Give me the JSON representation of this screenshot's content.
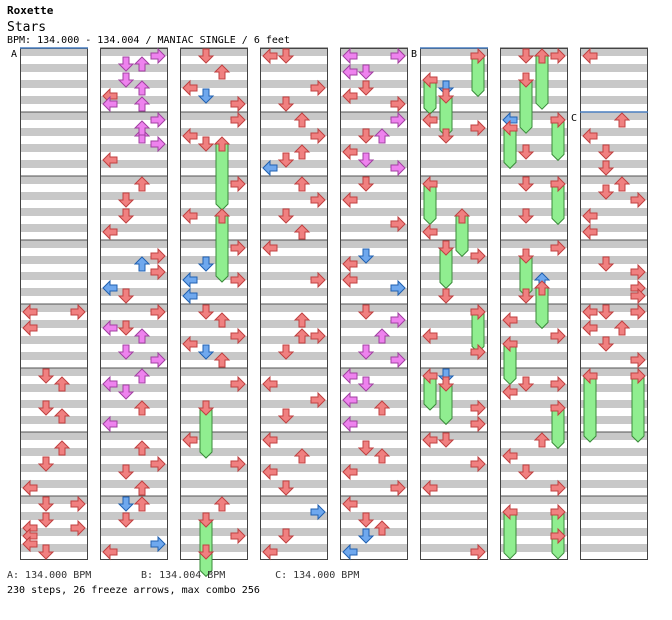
{
  "song": {
    "artist": "Roxette",
    "title": "Stars",
    "bpm_line": "BPM: 134.000 - 134.004 / MANIAC SINGLE / 6 feet"
  },
  "legend": [
    {
      "key": "A",
      "text": "A: 134.000 BPM"
    },
    {
      "key": "B",
      "text": "B: 134.004 BPM"
    },
    {
      "key": "C",
      "text": "C: 134.000 BPM"
    }
  ],
  "summary": "230 steps, 26 freeze arrows, max combo 256",
  "colors": {
    "quarter": "#f08080",
    "eighth": "#6fa8ee",
    "sixteenth": "#ee82ee",
    "freeze": "#90ee90",
    "stripe": "#c8c8c8",
    "bpm_marker": "#4a7fc0"
  },
  "chart": {
    "lanes": [
      "left",
      "down",
      "up",
      "right"
    ],
    "measures_per_column": 8,
    "columns": 8,
    "bpm_markers": [
      {
        "label": "A",
        "column": 0,
        "measure": 0
      },
      {
        "label": "B",
        "column": 5,
        "measure": 0
      },
      {
        "label": "C",
        "column": 7,
        "measure": 1
      }
    ],
    "measures": [
      [],
      [],
      [],
      [],
      [
        [
          0,
          0.125,
          "q"
        ],
        [
          3,
          0.125,
          "q"
        ],
        [
          0,
          0.375,
          "q"
        ]
      ],
      [
        [
          1,
          0.125,
          "q"
        ],
        [
          2,
          0.25,
          "q"
        ],
        [
          1,
          0.625,
          "q"
        ],
        [
          2,
          0.75,
          "q"
        ]
      ],
      [
        [
          2,
          0.25,
          "q"
        ],
        [
          1,
          0.5,
          "q"
        ],
        [
          0,
          0.875,
          "q"
        ]
      ],
      [
        [
          1,
          0.125,
          "q"
        ],
        [
          3,
          0.125,
          "q"
        ],
        [
          1,
          0.375,
          "q"
        ],
        [
          0,
          0.5,
          "q"
        ],
        [
          3,
          0.5,
          "q"
        ],
        [
          0,
          0.625,
          "q"
        ],
        [
          0,
          0.75,
          "q"
        ],
        [
          1,
          0.875,
          "q"
        ]
      ],
      [
        [
          2,
          0.25,
          "s"
        ],
        [
          3,
          0.125,
          "s"
        ],
        [
          1,
          0.25,
          "s"
        ],
        [
          1,
          0.5,
          "s"
        ],
        [
          2,
          0.625,
          "s"
        ],
        [
          0,
          0.75,
          "q"
        ],
        [
          0,
          0.875,
          "s"
        ],
        [
          2,
          0.875,
          "s"
        ]
      ],
      [
        [
          3,
          0.125,
          "s"
        ],
        [
          2,
          0.375,
          "s"
        ],
        [
          3,
          0.5,
          "s"
        ],
        [
          0,
          0.75,
          "q"
        ],
        [
          2,
          0.25,
          "s"
        ]
      ],
      [
        [
          2,
          0.125,
          "q"
        ],
        [
          1,
          0.375,
          "q"
        ],
        [
          1,
          0.625,
          "q"
        ],
        [
          0,
          0.875,
          "q"
        ]
      ],
      [
        [
          3,
          0.25,
          "q"
        ],
        [
          2,
          0.375,
          "e"
        ],
        [
          3,
          0.5,
          "q"
        ],
        [
          0,
          0.75,
          "e"
        ],
        [
          1,
          0.875,
          "q"
        ]
      ],
      [
        [
          3,
          0.125,
          "q"
        ],
        [
          0,
          0.375,
          "s"
        ],
        [
          1,
          0.375,
          "q"
        ],
        [
          2,
          0.5,
          "s"
        ],
        [
          1,
          0.75,
          "s"
        ],
        [
          3,
          0.875,
          "s"
        ]
      ],
      [
        [
          2,
          0.125,
          "s"
        ],
        [
          0,
          0.25,
          "s"
        ],
        [
          1,
          0.375,
          "s"
        ],
        [
          2,
          0.625,
          "q"
        ],
        [
          0,
          0.875,
          "s"
        ]
      ],
      [
        [
          2,
          0.25,
          "q"
        ],
        [
          3,
          0.5,
          "q"
        ],
        [
          1,
          0.625,
          "q"
        ],
        [
          2,
          0.875,
          "q"
        ]
      ],
      [
        [
          1,
          0.125,
          "e"
        ],
        [
          2,
          0.125,
          "q"
        ],
        [
          1,
          0.375,
          "q"
        ],
        [
          3,
          0.75,
          "e"
        ],
        [
          0,
          0.875,
          "q"
        ]
      ],
      [
        [
          1,
          0.125,
          "q"
        ],
        [
          2,
          0.375,
          "q"
        ],
        [
          0,
          0.625,
          "q"
        ],
        [
          1,
          0.75,
          "e"
        ],
        [
          3,
          0.875,
          "q"
        ]
      ],
      [
        [
          3,
          0.125,
          "q"
        ],
        [
          0,
          0.375,
          "q"
        ],
        [
          1,
          0.5,
          "q"
        ],
        [
          2,
          0.5,
          "f",
          1.0
        ]
      ],
      [
        [
          3,
          0.125,
          "q"
        ],
        [
          0,
          0.625,
          "q"
        ],
        [
          2,
          0.625,
          "f",
          1.0
        ]
      ],
      [
        [
          3,
          0.125,
          "q"
        ],
        [
          1,
          0.375,
          "e"
        ],
        [
          0,
          0.625,
          "e"
        ],
        [
          3,
          0.625,
          "q"
        ],
        [
          0,
          0.875,
          "e"
        ]
      ],
      [
        [
          1,
          0.125,
          "q"
        ],
        [
          2,
          0.25,
          "q"
        ],
        [
          3,
          0.5,
          "q"
        ],
        [
          0,
          0.625,
          "q"
        ],
        [
          1,
          0.75,
          "e"
        ],
        [
          2,
          0.875,
          "q"
        ]
      ],
      [
        [
          1,
          0.625,
          "f",
          0.75
        ],
        [
          3,
          0.25,
          "q"
        ]
      ],
      [
        [
          0,
          0.125,
          "q"
        ],
        [
          3,
          0.5,
          "q"
        ]
      ],
      [
        [
          2,
          0.125,
          "q"
        ],
        [
          1,
          0.375,
          "f",
          0.85
        ],
        [
          3,
          0.625,
          "q"
        ],
        [
          1,
          0.875,
          "q"
        ]
      ],
      [
        [
          0,
          0.125,
          "q"
        ],
        [
          1,
          0.125,
          "q"
        ],
        [
          3,
          0.625,
          "q"
        ],
        [
          1,
          0.875,
          "q"
        ]
      ],
      [
        [
          2,
          0.125,
          "q"
        ],
        [
          3,
          0.375,
          "q"
        ],
        [
          2,
          0.625,
          "q"
        ],
        [
          1,
          0.75,
          "q"
        ],
        [
          0,
          0.875,
          "e"
        ]
      ],
      [
        [
          2,
          0.125,
          "q"
        ],
        [
          3,
          0.375,
          "q"
        ],
        [
          1,
          0.625,
          "q"
        ],
        [
          2,
          0.875,
          "q"
        ]
      ],
      [
        [
          0,
          0.125,
          "q"
        ],
        [
          3,
          0.625,
          "q"
        ]
      ],
      [
        [
          2,
          0.25,
          "q"
        ],
        [
          2,
          0.5,
          "q"
        ],
        [
          3,
          0.5,
          "q"
        ],
        [
          1,
          0.75,
          "q"
        ]
      ],
      [
        [
          0,
          0.25,
          "q"
        ],
        [
          3,
          0.5,
          "q"
        ],
        [
          1,
          0.75,
          "q"
        ]
      ],
      [
        [
          0,
          0.125,
          "q"
        ],
        [
          2,
          0.375,
          "q"
        ],
        [
          0,
          0.625,
          "q"
        ],
        [
          1,
          0.875,
          "q"
        ]
      ],
      [
        [
          3,
          0.25,
          "e"
        ],
        [
          1,
          0.625,
          "q"
        ],
        [
          0,
          0.875,
          "q"
        ]
      ],
      [
        [
          0,
          0.125,
          "s"
        ],
        [
          3,
          0.125,
          "q"
        ],
        [
          1,
          0.375,
          "s"
        ],
        [
          0,
          0.375,
          "s"
        ],
        [
          3,
          0.125,
          "s"
        ],
        [
          1,
          0.625,
          "q"
        ],
        [
          0,
          0.75,
          "q"
        ],
        [
          3,
          0.875,
          "q"
        ]
      ],
      [
        [
          3,
          0.125,
          "s"
        ],
        [
          1,
          0.375,
          "q"
        ],
        [
          2,
          0.375,
          "s"
        ],
        [
          0,
          0.625,
          "q"
        ],
        [
          1,
          0.75,
          "s"
        ],
        [
          3,
          0.875,
          "s"
        ]
      ],
      [
        [
          1,
          0.125,
          "q"
        ],
        [
          0,
          0.375,
          "q"
        ],
        [
          3,
          0.75,
          "q"
        ]
      ],
      [
        [
          1,
          0.25,
          "e"
        ],
        [
          0,
          0.375,
          "q"
        ],
        [
          0,
          0.625,
          "q"
        ],
        [
          3,
          0.75,
          "e"
        ]
      ],
      [
        [
          1,
          0.125,
          "q"
        ],
        [
          3,
          0.25,
          "s"
        ],
        [
          2,
          0.5,
          "s"
        ],
        [
          1,
          0.75,
          "s"
        ],
        [
          3,
          0.875,
          "s"
        ]
      ],
      [
        [
          0,
          0.125,
          "s"
        ],
        [
          1,
          0.25,
          "s"
        ],
        [
          0,
          0.5,
          "s"
        ],
        [
          2,
          0.625,
          "q"
        ],
        [
          0,
          0.875,
          "s"
        ]
      ],
      [
        [
          1,
          0.25,
          "q"
        ],
        [
          2,
          0.375,
          "q"
        ],
        [
          0,
          0.625,
          "q"
        ],
        [
          3,
          0.875,
          "q"
        ]
      ],
      [
        [
          0,
          0.125,
          "q"
        ],
        [
          1,
          0.375,
          "q"
        ],
        [
          2,
          0.5,
          "q"
        ],
        [
          1,
          0.625,
          "e"
        ],
        [
          0,
          0.875,
          "e"
        ]
      ],
      [
        [
          3,
          0.125,
          "f",
          0.6
        ],
        [
          0,
          0.5,
          "f",
          0.5
        ],
        [
          1,
          0.625,
          "e"
        ],
        [
          1,
          0.75,
          "f",
          0.6
        ]
      ],
      [
        [
          0,
          0.125,
          "q"
        ],
        [
          1,
          0.375,
          "q"
        ],
        [
          3,
          0.25,
          "q"
        ]
      ],
      [
        [
          0,
          0.125,
          "f",
          0.6
        ],
        [
          2,
          0.625,
          "f",
          0.6
        ],
        [
          0,
          0.875,
          "q"
        ]
      ],
      [
        [
          1,
          0.125,
          "e"
        ],
        [
          1,
          0.125,
          "f",
          0.6
        ],
        [
          3,
          0.25,
          "q"
        ],
        [
          1,
          0.875,
          "q"
        ]
      ],
      [
        [
          3,
          0.125,
          "f",
          0.6
        ],
        [
          0,
          0.5,
          "q"
        ],
        [
          3,
          0.75,
          "q"
        ]
      ],
      [
        [
          0,
          0.125,
          "f",
          0.5
        ],
        [
          1,
          0.125,
          "e"
        ],
        [
          1,
          0.25,
          "f",
          0.6
        ],
        [
          3,
          0.625,
          "q"
        ],
        [
          3,
          0.875,
          "q"
        ]
      ],
      [
        [
          0,
          0.125,
          "q"
        ],
        [
          1,
          0.125,
          "q"
        ],
        [
          3,
          0.5,
          "q"
        ],
        [
          0,
          0.875,
          "q"
        ]
      ],
      [
        [
          3,
          0.875,
          "q"
        ]
      ],
      [
        [
          1,
          0.125,
          "q"
        ],
        [
          3,
          0.125,
          "q"
        ],
        [
          2,
          0.125,
          "f",
          0.8
        ],
        [
          1,
          0.5,
          "f",
          0.8
        ]
      ],
      [
        [
          0,
          0.125,
          "e"
        ],
        [
          0,
          0.25,
          "f",
          0.6
        ],
        [
          3,
          0.125,
          "f",
          0.6
        ],
        [
          1,
          0.625,
          "q"
        ]
      ],
      [
        [
          1,
          0.125,
          "q"
        ],
        [
          3,
          0.125,
          "f",
          0.6
        ],
        [
          1,
          0.625,
          "q"
        ]
      ],
      [
        [
          3,
          0.125,
          "q"
        ],
        [
          1,
          0.25,
          "f",
          0.6
        ],
        [
          2,
          0.625,
          "e"
        ],
        [
          2,
          0.75,
          "f",
          0.6
        ],
        [
          1,
          0.875,
          "q"
        ]
      ],
      [
        [
          0,
          0.25,
          "q"
        ],
        [
          3,
          0.5,
          "q"
        ],
        [
          0,
          0.625,
          "f",
          0.6
        ]
      ],
      [
        [
          1,
          0.25,
          "q"
        ],
        [
          3,
          0.25,
          "q"
        ],
        [
          0,
          0.375,
          "q"
        ],
        [
          3,
          0.625,
          "f",
          0.6
        ]
      ],
      [
        [
          2,
          0.125,
          "q"
        ],
        [
          0,
          0.375,
          "q"
        ],
        [
          1,
          0.625,
          "q"
        ],
        [
          3,
          0.875,
          "q"
        ]
      ],
      [
        [
          0,
          0.25,
          "f",
          0.7
        ],
        [
          3,
          0.25,
          "f",
          0.7
        ],
        [
          3,
          0.625,
          "q"
        ]
      ],
      [
        [
          0,
          0.125,
          "q"
        ]
      ],
      [
        [
          2,
          0.125,
          "q"
        ],
        [
          0,
          0.375,
          "q"
        ],
        [
          1,
          0.625,
          "q"
        ],
        [
          1,
          0.875,
          "q"
        ]
      ],
      [
        [
          2,
          0.125,
          "q"
        ],
        [
          1,
          0.25,
          "q"
        ],
        [
          3,
          0.375,
          "q"
        ],
        [
          0,
          0.625,
          "q"
        ],
        [
          0,
          0.875,
          "q"
        ]
      ],
      [
        [
          1,
          0.375,
          "q"
        ],
        [
          3,
          0.5,
          "q"
        ],
        [
          3,
          0.75,
          "q"
        ],
        [
          3,
          0.875,
          "q"
        ]
      ],
      [
        [
          0,
          0.125,
          "q"
        ],
        [
          1,
          0.125,
          "q"
        ],
        [
          3,
          0.125,
          "q"
        ],
        [
          0,
          0.375,
          "q"
        ],
        [
          2,
          0.375,
          "q"
        ],
        [
          1,
          0.625,
          "q"
        ],
        [
          3,
          0.875,
          "q"
        ]
      ],
      [
        [
          0,
          0.125,
          "f",
          1.0
        ],
        [
          3,
          0.125,
          "f",
          1.0
        ]
      ],
      [],
      []
    ]
  }
}
